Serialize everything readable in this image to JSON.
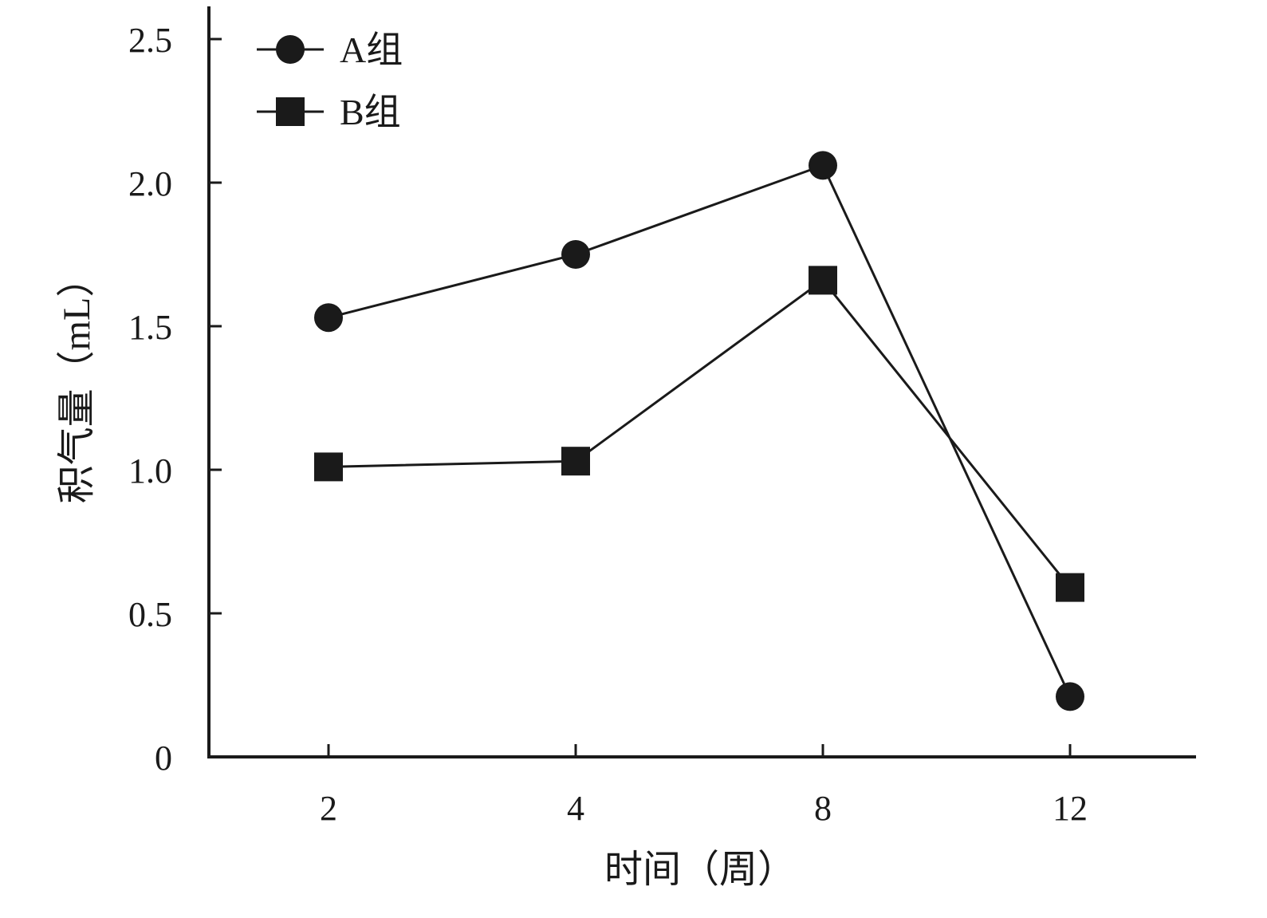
{
  "chart_data": {
    "type": "line",
    "title": "",
    "xlabel": "时间（周）",
    "ylabel": "积气量（mL）",
    "categories": [
      "2",
      "4",
      "8",
      "12"
    ],
    "x": [
      2,
      4,
      8,
      12
    ],
    "ylim": [
      0,
      2.6
    ],
    "yticks": [
      0,
      0.5,
      1.0,
      1.5,
      2.0,
      2.5
    ],
    "ytick_labels": [
      "0",
      "0.5",
      "1.0",
      "1.5",
      "2.0",
      "2.5"
    ],
    "grid": false,
    "legend_position": "top-left",
    "series": [
      {
        "name": "A组",
        "marker": "circle",
        "values": [
          1.53,
          1.75,
          2.06,
          0.21
        ]
      },
      {
        "name": "B组",
        "marker": "square",
        "values": [
          1.01,
          1.03,
          1.66,
          0.59
        ]
      }
    ],
    "colors": {
      "line": "#1a1a1a",
      "marker": "#1a1a1a"
    }
  }
}
